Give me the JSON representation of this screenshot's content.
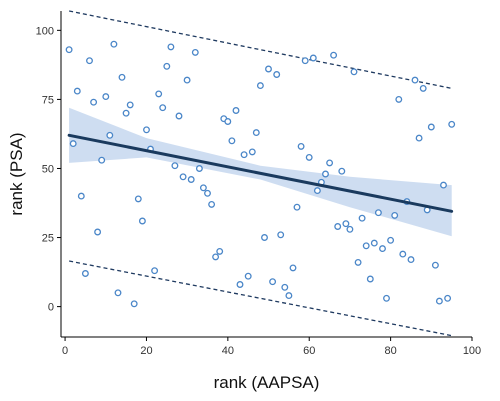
{
  "chart_data": {
    "type": "scatter",
    "title": "",
    "xlabel": "rank (AAPSA)",
    "ylabel": "rank (PSA)",
    "xlim": [
      -1,
      100
    ],
    "ylim": [
      -11,
      107
    ],
    "xticks": [
      0,
      20,
      40,
      60,
      80,
      100
    ],
    "yticks": [
      0,
      25,
      50,
      75,
      100
    ],
    "x_tick_labels": [
      "0",
      "20",
      "40",
      "60",
      "80",
      "100"
    ],
    "y_tick_labels": [
      "0",
      "25",
      "50",
      "75",
      "100"
    ],
    "grid": false,
    "legend": "none",
    "colors": {
      "points": "#4a86c8",
      "fit_line": "#1a3a5e",
      "confidence_band": "#c6d7ef",
      "bounds": "#1f3a60",
      "axis": "#000000"
    },
    "points": [
      [
        1,
        93
      ],
      [
        2,
        59
      ],
      [
        3,
        78
      ],
      [
        4,
        40
      ],
      [
        5,
        12
      ],
      [
        6,
        89
      ],
      [
        7,
        74
      ],
      [
        8,
        27
      ],
      [
        9,
        53
      ],
      [
        10,
        76
      ],
      [
        11,
        62
      ],
      [
        12,
        95
      ],
      [
        13,
        5
      ],
      [
        14,
        83
      ],
      [
        15,
        70
      ],
      [
        16,
        73
      ],
      [
        17,
        1
      ],
      [
        18,
        39
      ],
      [
        19,
        31
      ],
      [
        20,
        64
      ],
      [
        21,
        57
      ],
      [
        22,
        13
      ],
      [
        23,
        77
      ],
      [
        24,
        72
      ],
      [
        25,
        87
      ],
      [
        26,
        94
      ],
      [
        27,
        51
      ],
      [
        28,
        69
      ],
      [
        29,
        47
      ],
      [
        30,
        82
      ],
      [
        31,
        46
      ],
      [
        32,
        92
      ],
      [
        33,
        50
      ],
      [
        34,
        43
      ],
      [
        35,
        41
      ],
      [
        36,
        37
      ],
      [
        37,
        18
      ],
      [
        38,
        20
      ],
      [
        39,
        68
      ],
      [
        40,
        67
      ],
      [
        41,
        60
      ],
      [
        42,
        71
      ],
      [
        43,
        8
      ],
      [
        44,
        55
      ],
      [
        45,
        11
      ],
      [
        46,
        56
      ],
      [
        47,
        63
      ],
      [
        48,
        80
      ],
      [
        49,
        25
      ],
      [
        50,
        86
      ],
      [
        51,
        9
      ],
      [
        52,
        84
      ],
      [
        53,
        26
      ],
      [
        54,
        7
      ],
      [
        55,
        4
      ],
      [
        56,
        14
      ],
      [
        57,
        36
      ],
      [
        58,
        58
      ],
      [
        59,
        89
      ],
      [
        60,
        54
      ],
      [
        61,
        90
      ],
      [
        62,
        42
      ],
      [
        63,
        45
      ],
      [
        64,
        48
      ],
      [
        65,
        52
      ],
      [
        66,
        91
      ],
      [
        67,
        29
      ],
      [
        68,
        49
      ],
      [
        69,
        30
      ],
      [
        70,
        28
      ],
      [
        71,
        85
      ],
      [
        72,
        16
      ],
      [
        73,
        32
      ],
      [
        74,
        22
      ],
      [
        75,
        10
      ],
      [
        76,
        23
      ],
      [
        77,
        34
      ],
      [
        78,
        21
      ],
      [
        79,
        3
      ],
      [
        80,
        24
      ],
      [
        81,
        33
      ],
      [
        82,
        75
      ],
      [
        83,
        19
      ],
      [
        84,
        38
      ],
      [
        85,
        17
      ],
      [
        86,
        82
      ],
      [
        87,
        61
      ],
      [
        88,
        79
      ],
      [
        89,
        35
      ],
      [
        90,
        65
      ],
      [
        91,
        15
      ],
      [
        92,
        2
      ],
      [
        93,
        44
      ],
      [
        94,
        3
      ],
      [
        95,
        66
      ]
    ],
    "fit_line": {
      "x": [
        1,
        95
      ],
      "y": [
        62,
        34.5
      ]
    },
    "confidence_band": {
      "x": [
        1,
        20,
        48,
        70,
        95
      ],
      "lower": [
        52,
        54,
        46,
        36,
        25.5
      ],
      "upper": [
        72,
        61,
        51,
        47,
        44
      ]
    },
    "upper_bound": {
      "x": [
        1,
        95
      ],
      "y": [
        107,
        79
      ]
    },
    "lower_bound": {
      "x": [
        1,
        95
      ],
      "y": [
        16.5,
        -10.5
      ]
    }
  }
}
